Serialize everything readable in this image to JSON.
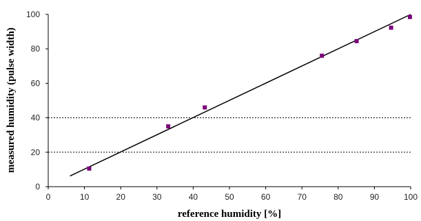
{
  "chart_data": {
    "type": "scatter",
    "title": "",
    "xlabel": "reference humidity [%]",
    "ylabel": "measured humidity (pulse width)",
    "xlim": [
      0,
      100
    ],
    "ylim": [
      0,
      100
    ],
    "xticks": [
      "0",
      "10",
      "20",
      "30",
      "40",
      "50",
      "60",
      "70",
      "80",
      "90",
      "100"
    ],
    "yticks": [
      "0",
      "20",
      "40",
      "60",
      "80",
      "100"
    ],
    "gridlines_y": [
      20,
      40
    ],
    "grid_style": "dotted",
    "legend": "none",
    "series": [
      {
        "points": [
          {
            "x": 11.3,
            "y": 10.5
          },
          {
            "x": 33.1,
            "y": 35.0
          },
          {
            "x": 43.2,
            "y": 46.0
          },
          {
            "x": 75.5,
            "y": 76.0
          },
          {
            "x": 85.1,
            "y": 84.5
          },
          {
            "x": 94.6,
            "y": 92.3
          },
          {
            "x": 99.8,
            "y": 98.5
          }
        ],
        "color": "#7a007a",
        "marker": "square"
      }
    ],
    "fit_line": {
      "x": [
        6,
        100
      ],
      "y": [
        6.2,
        100
      ],
      "color": "#000000"
    }
  }
}
